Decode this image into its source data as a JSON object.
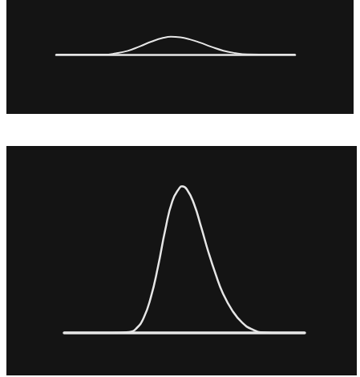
{
  "chart_data": [
    {
      "type": "line",
      "x": [
        0,
        10,
        20,
        25,
        30,
        35,
        40,
        45,
        48,
        52,
        56,
        60,
        65,
        70,
        75,
        80,
        90,
        100
      ],
      "values": [
        0,
        0,
        0,
        0.8,
        2.5,
        5.5,
        8.8,
        11.3,
        12,
        11.6,
        10.2,
        8.2,
        5.2,
        2.6,
        1,
        0.2,
        0,
        0
      ],
      "color": "#e6e6e6",
      "xlim": [
        0,
        100
      ],
      "ylim": [
        0,
        20
      ],
      "tick_labels": false,
      "grid": false
    },
    {
      "type": "line",
      "x": [
        0,
        10,
        20,
        27,
        30,
        33,
        36,
        39,
        42,
        45,
        48,
        49,
        51,
        54,
        57,
        60,
        63,
        66,
        70,
        74,
        78,
        83,
        90,
        100
      ],
      "values": [
        0,
        0,
        0,
        0.5,
        3,
        10,
        24,
        45,
        70,
        90,
        99,
        100,
        98,
        88,
        72,
        55,
        40,
        27,
        15,
        7,
        2.5,
        0.3,
        0,
        0
      ],
      "color": "#e6e6e6",
      "xlim": [
        0,
        100
      ],
      "ylim": [
        0,
        110
      ],
      "tick_labels": false,
      "grid": false
    }
  ]
}
